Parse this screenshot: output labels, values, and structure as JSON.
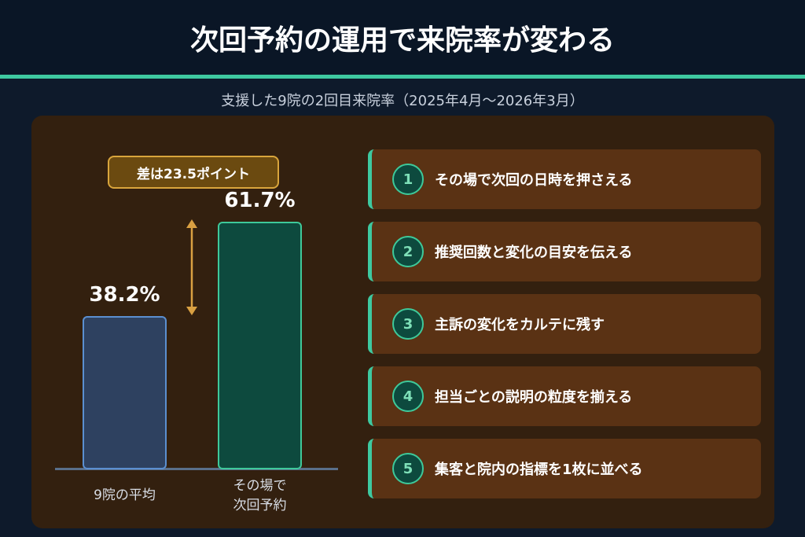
{
  "header": {
    "title": "次回予約の運用で来院率が変わる"
  },
  "chart_data": {
    "type": "bar",
    "subtitle": "支援した9院の2回目来院率（2025年4月〜2026年3月）",
    "categories": [
      "9院の平均",
      "その場で\n次回予約"
    ],
    "values": [
      38.2,
      61.7
    ],
    "value_labels": [
      "38.2%",
      "61.7%"
    ],
    "colors": [
      "#2e4160",
      "#0d4a3e"
    ],
    "annotation": "差は23.5ポイント"
  },
  "steps": [
    {
      "number": "1",
      "text": "その場で次回の日時を押さえる"
    },
    {
      "number": "2",
      "text": "推奨回数と変化の目安を伝える"
    },
    {
      "number": "3",
      "text": "主訴の変化をカルテに残す"
    },
    {
      "number": "4",
      "text": "担当ごとの説明の粒度を揃える"
    },
    {
      "number": "5",
      "text": "集客と院内の指標を1枚に並べる"
    }
  ]
}
